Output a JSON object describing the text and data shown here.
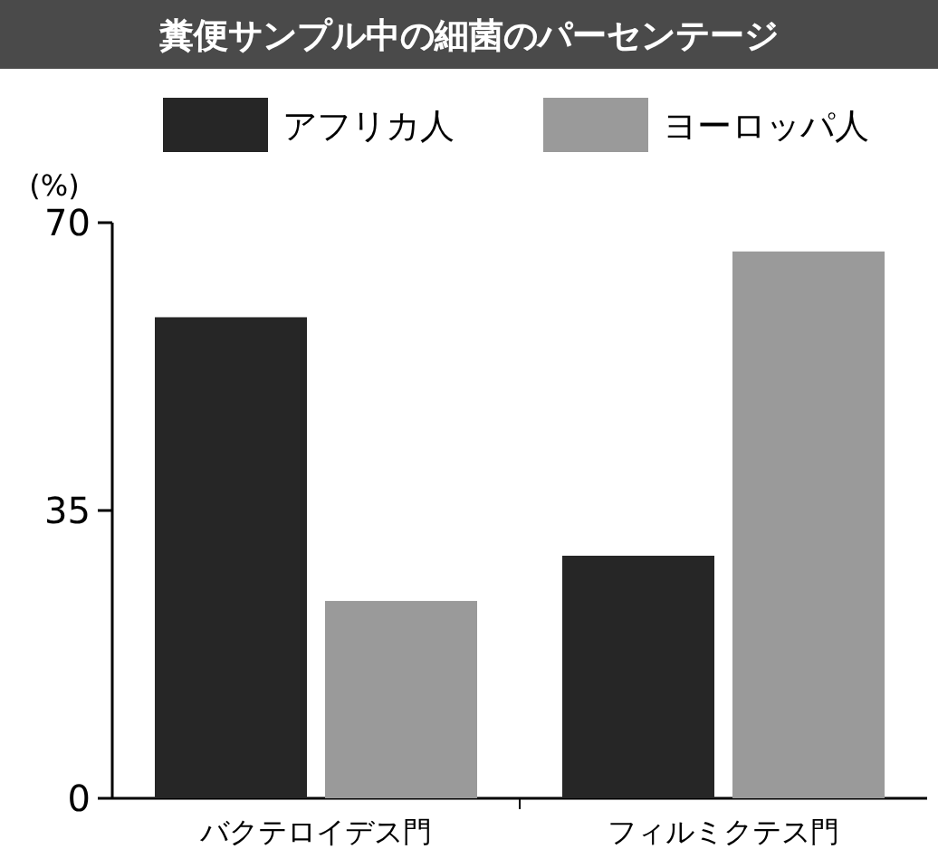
{
  "chart_data": {
    "type": "bar",
    "title": "糞便サンプル中の細菌のパーセンテージ",
    "ylabel": "(%)",
    "categories": [
      "バクテロイデス門",
      "フィルミクテス門"
    ],
    "series": [
      {
        "name": "アフリカ人",
        "color": "#262626",
        "values": [
          58.5,
          29.5
        ]
      },
      {
        "name": "ヨーロッパ人",
        "color": "#9a9a9a",
        "values": [
          24,
          66.5
        ]
      }
    ],
    "ylim": [
      0,
      70
    ],
    "yticks": [
      0,
      35,
      70
    ],
    "legend": "top"
  }
}
